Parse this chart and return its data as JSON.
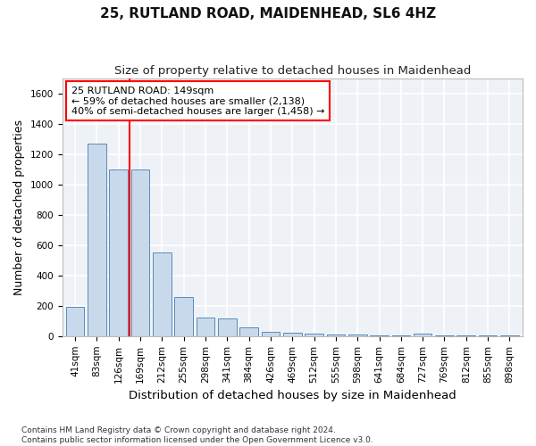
{
  "title": "25, RUTLAND ROAD, MAIDENHEAD, SL6 4HZ",
  "subtitle": "Size of property relative to detached houses in Maidenhead",
  "xlabel": "Distribution of detached houses by size in Maidenhead",
  "ylabel": "Number of detached properties",
  "categories": [
    "41sqm",
    "83sqm",
    "126sqm",
    "169sqm",
    "212sqm",
    "255sqm",
    "298sqm",
    "341sqm",
    "384sqm",
    "426sqm",
    "469sqm",
    "512sqm",
    "555sqm",
    "598sqm",
    "641sqm",
    "684sqm",
    "727sqm",
    "769sqm",
    "812sqm",
    "855sqm",
    "898sqm"
  ],
  "values": [
    195,
    1270,
    1100,
    1100,
    550,
    260,
    120,
    115,
    55,
    28,
    20,
    15,
    10,
    8,
    2,
    2,
    18,
    2,
    2,
    2,
    2
  ],
  "bar_color": "#c9d9ec",
  "bar_edge_color": "#5a8ab5",
  "bar_width": 0.85,
  "ylim": [
    0,
    1700
  ],
  "yticks": [
    0,
    200,
    400,
    600,
    800,
    1000,
    1200,
    1400,
    1600
  ],
  "red_line_x": 2.5,
  "annotation_line1": "25 RUTLAND ROAD: 149sqm",
  "annotation_line2": "← 59% of detached houses are smaller (2,138)",
  "annotation_line3": "40% of semi-detached houses are larger (1,458) →",
  "footer_line1": "Contains HM Land Registry data © Crown copyright and database right 2024.",
  "footer_line2": "Contains public sector information licensed under the Open Government Licence v3.0.",
  "background_color": "#eef2f7",
  "grid_color": "#ffffff",
  "title_fontsize": 11,
  "subtitle_fontsize": 9.5,
  "axis_label_fontsize": 9,
  "tick_fontsize": 7.5,
  "annotation_fontsize": 8,
  "footer_fontsize": 6.5
}
